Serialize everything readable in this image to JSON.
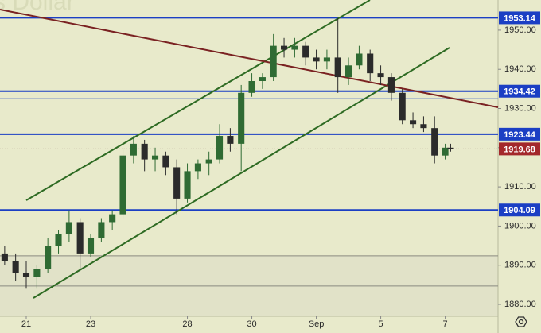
{
  "chart_data": {
    "type": "candlestick",
    "watermark": "s Dollar",
    "x": [
      -0.67,
      -0.33,
      0,
      0.33,
      0.67,
      1,
      1.33,
      1.67,
      2,
      2.33,
      2.67,
      3,
      3.33,
      3.67,
      4,
      4.33,
      4.67,
      5,
      5.33,
      5.67,
      6,
      6.33,
      6.67,
      7,
      7.33,
      7.67,
      8,
      8.33,
      8.67,
      9,
      9.33,
      9.67,
      10,
      10.33,
      10.67,
      11,
      11.33,
      11.67,
      12,
      12.33,
      12.67,
      13,
      13.17
    ],
    "open": [
      1893,
      1891,
      1888,
      1887,
      1889,
      1895,
      1898,
      1901,
      1893,
      1897,
      1901,
      1903,
      1918,
      1921,
      1917,
      1918,
      1915,
      1907,
      1914,
      1916,
      1917,
      1923,
      1921,
      1934,
      1937,
      1938,
      1946,
      1945,
      1946,
      1943,
      1942,
      1943,
      1938,
      1941,
      1944,
      1939,
      1938,
      1934,
      1927,
      1926,
      1925,
      1918,
      1920
    ],
    "high": [
      1895,
      1893,
      1891,
      1890,
      1897,
      1899,
      1904,
      1902,
      1898,
      1902,
      1904,
      1920,
      1923,
      1922,
      1920,
      1919,
      1917,
      1916,
      1917,
      1919,
      1926,
      1925,
      1936,
      1939,
      1939,
      1949,
      1948,
      1948,
      1947,
      1945,
      1945,
      1953,
      1943,
      1946,
      1945,
      1941,
      1939,
      1935,
      1929,
      1928,
      1928,
      1921,
      1921
    ],
    "low": [
      1890,
      1886,
      1884,
      1884,
      1888,
      1893,
      1896,
      1889,
      1892,
      1896,
      1899,
      1902,
      1916,
      1914,
      1914,
      1913,
      1903,
      1906,
      1912,
      1913,
      1916,
      1919,
      1914,
      1933,
      1935,
      1937,
      1943,
      1943,
      1941,
      1940,
      1940,
      1934,
      1936,
      1940,
      1937,
      1936,
      1932,
      1926,
      1925,
      1924,
      1916,
      1917,
      1919
    ],
    "close": [
      1891,
      1888,
      1887,
      1889,
      1895,
      1898,
      1901,
      1893,
      1897,
      1901,
      1903,
      1918,
      1921,
      1917,
      1918,
      1915,
      1907,
      1914,
      1916,
      1917,
      1923,
      1921,
      1934,
      1937,
      1938,
      1946,
      1945,
      1946,
      1943,
      1942,
      1943,
      1938,
      1941,
      1944,
      1939,
      1938,
      1934,
      1927,
      1926,
      1925,
      1918,
      1920,
      1919.68
    ],
    "up_color": "#2f6b33",
    "down_color": "#2b2b2b",
    "xlim": [
      -0.815,
      14.64
    ],
    "xticks": [
      {
        "value": 0,
        "label": "21"
      },
      {
        "value": 2,
        "label": "23"
      },
      {
        "value": 5,
        "label": "28"
      },
      {
        "value": 7,
        "label": "30"
      },
      {
        "value": 9,
        "label": "Sep"
      },
      {
        "value": 11,
        "label": "5"
      },
      {
        "value": 13,
        "label": "7"
      }
    ],
    "ylim": [
      1876.96,
      1957.69
    ],
    "yticks": [
      {
        "value": 1880,
        "label": "1880.00"
      },
      {
        "value": 1890,
        "label": "1890.00"
      },
      {
        "value": 1900,
        "label": "1900.00"
      },
      {
        "value": 1910,
        "label": "1910.00"
      },
      {
        "value": 1920,
        "label": "1920.00"
      },
      {
        "value": 1930,
        "label": "1930.00"
      },
      {
        "value": 1940,
        "label": "1940.00"
      },
      {
        "value": 1950,
        "label": "1950.00"
      }
    ],
    "levels": [
      1953.14,
      1934.42,
      1923.44,
      1904.09
    ],
    "level_color": "#1b3fc4",
    "extra_lines": [
      {
        "value": 1932.5,
        "color": "#5a74c8"
      },
      {
        "value": 1892.4,
        "color": "#8a8a80"
      },
      {
        "value": 1884.7,
        "color": "#8a8a80"
      }
    ],
    "last_price": 1919.68,
    "last_color": "#a3282b"
  }
}
